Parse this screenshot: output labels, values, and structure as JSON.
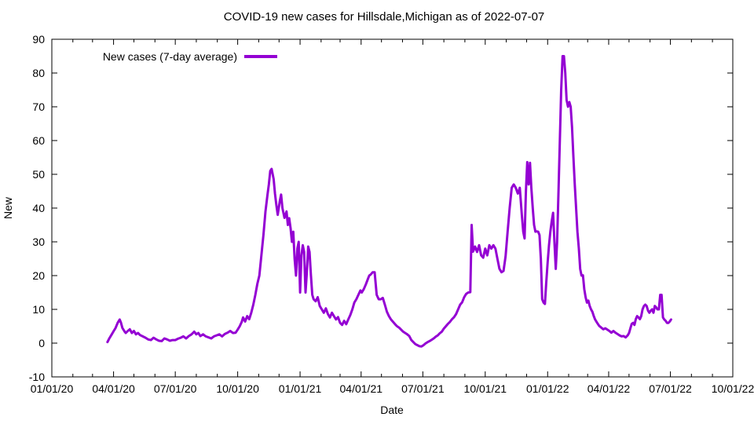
{
  "chart_data": {
    "type": "line",
    "title": "COVID-19 new cases for Hillsdale,Michigan as of 2022-07-07",
    "xlabel": "Date",
    "ylabel": "New",
    "x_unit": "days since 2020-01-01",
    "xlim": [
      0,
      1004
    ],
    "ylim": [
      -10,
      90
    ],
    "grid": false,
    "legend_position": "top-left-inside",
    "yticks": [
      -10,
      0,
      10,
      20,
      30,
      40,
      50,
      60,
      70,
      80,
      90
    ],
    "xticks": [
      {
        "day": 0,
        "label": "01/01/20"
      },
      {
        "day": 91,
        "label": "04/01/20"
      },
      {
        "day": 182,
        "label": "07/01/20"
      },
      {
        "day": 274,
        "label": "10/01/20"
      },
      {
        "day": 366,
        "label": "01/01/21"
      },
      {
        "day": 456,
        "label": "04/01/21"
      },
      {
        "day": 547,
        "label": "07/01/21"
      },
      {
        "day": 639,
        "label": "10/01/21"
      },
      {
        "day": 731,
        "label": "01/01/22"
      },
      {
        "day": 821,
        "label": "04/01/22"
      },
      {
        "day": 912,
        "label": "07/01/22"
      },
      {
        "day": 1004,
        "label": "10/01/22"
      }
    ],
    "xminor_days": [
      31,
      60,
      121,
      152,
      213,
      244,
      305,
      335,
      397,
      425,
      486,
      517,
      578,
      609,
      670,
      700,
      762,
      790,
      851,
      882,
      943,
      974
    ],
    "series": [
      {
        "name": "New cases (7-day average)",
        "color": "#9400d3",
        "points": [
          [
            82,
            0.3
          ],
          [
            85,
            1.5
          ],
          [
            88,
            2.5
          ],
          [
            91,
            3.5
          ],
          [
            94,
            4.5
          ],
          [
            97,
            6
          ],
          [
            100,
            7
          ],
          [
            102,
            6
          ],
          [
            104,
            4.5
          ],
          [
            107,
            3.5
          ],
          [
            109,
            3
          ],
          [
            112,
            3.6
          ],
          [
            115,
            4.1
          ],
          [
            118,
            3
          ],
          [
            121,
            3.6
          ],
          [
            124,
            2.6
          ],
          [
            127,
            3
          ],
          [
            130,
            2.4
          ],
          [
            134,
            2
          ],
          [
            138,
            1.6
          ],
          [
            142,
            1.1
          ],
          [
            146,
            0.9
          ],
          [
            150,
            1.6
          ],
          [
            154,
            1.1
          ],
          [
            158,
            0.7
          ],
          [
            162,
            0.6
          ],
          [
            166,
            1.4
          ],
          [
            170,
            1.1
          ],
          [
            174,
            0.7
          ],
          [
            178,
            0.9
          ],
          [
            182,
            0.9
          ],
          [
            186,
            1.3
          ],
          [
            190,
            1.6
          ],
          [
            194,
            2
          ],
          [
            198,
            1.4
          ],
          [
            202,
            2.1
          ],
          [
            206,
            2.6
          ],
          [
            210,
            3.4
          ],
          [
            213,
            2.6
          ],
          [
            216,
            3
          ],
          [
            219,
            2.1
          ],
          [
            223,
            2.6
          ],
          [
            227,
            2
          ],
          [
            231,
            1.7
          ],
          [
            235,
            1.4
          ],
          [
            239,
            2
          ],
          [
            243,
            2.3
          ],
          [
            247,
            2.6
          ],
          [
            251,
            2
          ],
          [
            255,
            2.7
          ],
          [
            259,
            3.1
          ],
          [
            263,
            3.6
          ],
          [
            267,
            3
          ],
          [
            271,
            3.1
          ],
          [
            274,
            4
          ],
          [
            277,
            5
          ],
          [
            280,
            6.3
          ],
          [
            282,
            7.6
          ],
          [
            285,
            6.4
          ],
          [
            288,
            8
          ],
          [
            291,
            7.1
          ],
          [
            294,
            9
          ],
          [
            297,
            11.4
          ],
          [
            300,
            14.3
          ],
          [
            303,
            17.6
          ],
          [
            306,
            20
          ],
          [
            309,
            26
          ],
          [
            312,
            32
          ],
          [
            315,
            39
          ],
          [
            318,
            44
          ],
          [
            320,
            47
          ],
          [
            322,
            51
          ],
          [
            324,
            51.6
          ],
          [
            327,
            48.6
          ],
          [
            329,
            44.3
          ],
          [
            331,
            41
          ],
          [
            333,
            38
          ],
          [
            336,
            42
          ],
          [
            338,
            44
          ],
          [
            340,
            40
          ],
          [
            343,
            37.1
          ],
          [
            346,
            39
          ],
          [
            348,
            35
          ],
          [
            350,
            37
          ],
          [
            352,
            34
          ],
          [
            354,
            30
          ],
          [
            356,
            33
          ],
          [
            358,
            25
          ],
          [
            360,
            20
          ],
          [
            362,
            28
          ],
          [
            364,
            30
          ],
          [
            366,
            15
          ],
          [
            368,
            26
          ],
          [
            370,
            29
          ],
          [
            372,
            27
          ],
          [
            374,
            15
          ],
          [
            376,
            21
          ],
          [
            378,
            28.6
          ],
          [
            380,
            27
          ],
          [
            382,
            20
          ],
          [
            384,
            14.3
          ],
          [
            386,
            13
          ],
          [
            389,
            12.4
          ],
          [
            392,
            13.6
          ],
          [
            395,
            11
          ],
          [
            398,
            10
          ],
          [
            401,
            9
          ],
          [
            404,
            10.3
          ],
          [
            407,
            8.6
          ],
          [
            410,
            7.6
          ],
          [
            413,
            9
          ],
          [
            416,
            8
          ],
          [
            419,
            7
          ],
          [
            422,
            7.7
          ],
          [
            425,
            6
          ],
          [
            428,
            5.4
          ],
          [
            431,
            6.6
          ],
          [
            434,
            5.6
          ],
          [
            437,
            7
          ],
          [
            440,
            8.3
          ],
          [
            443,
            10
          ],
          [
            446,
            12
          ],
          [
            449,
            13
          ],
          [
            452,
            14.3
          ],
          [
            455,
            15.6
          ],
          [
            457,
            15
          ],
          [
            460,
            16
          ],
          [
            463,
            17.4
          ],
          [
            466,
            19
          ],
          [
            468,
            20
          ],
          [
            470,
            20.3
          ],
          [
            473,
            21
          ],
          [
            476,
            21
          ],
          [
            479,
            14.3
          ],
          [
            482,
            13
          ],
          [
            485,
            13
          ],
          [
            488,
            13.4
          ],
          [
            491,
            11.4
          ],
          [
            494,
            9.3
          ],
          [
            497,
            8
          ],
          [
            500,
            7
          ],
          [
            503,
            6.3
          ],
          [
            506,
            5.6
          ],
          [
            509,
            5
          ],
          [
            512,
            4.6
          ],
          [
            515,
            4
          ],
          [
            518,
            3.4
          ],
          [
            521,
            3
          ],
          [
            524,
            2.6
          ],
          [
            527,
            2.1
          ],
          [
            530,
            0.9
          ],
          [
            533,
            0.3
          ],
          [
            536,
            -0.3
          ],
          [
            539,
            -0.6
          ],
          [
            542,
            -0.9
          ],
          [
            545,
            -1
          ],
          [
            548,
            -0.6
          ],
          [
            551,
            -0.1
          ],
          [
            554,
            0.3
          ],
          [
            557,
            0.6
          ],
          [
            560,
            1
          ],
          [
            563,
            1.4
          ],
          [
            566,
            1.9
          ],
          [
            569,
            2.3
          ],
          [
            572,
            2.9
          ],
          [
            575,
            3.4
          ],
          [
            578,
            4.3
          ],
          [
            581,
            5
          ],
          [
            584,
            5.7
          ],
          [
            587,
            6.3
          ],
          [
            590,
            7.1
          ],
          [
            593,
            7.7
          ],
          [
            596,
            8.6
          ],
          [
            599,
            10
          ],
          [
            602,
            11.4
          ],
          [
            605,
            12.1
          ],
          [
            608,
            13.6
          ],
          [
            611,
            14.6
          ],
          [
            614,
            15
          ],
          [
            617,
            15.1
          ],
          [
            619,
            35
          ],
          [
            621,
            27.1
          ],
          [
            624,
            28.6
          ],
          [
            627,
            27
          ],
          [
            630,
            29
          ],
          [
            633,
            26
          ],
          [
            636,
            25.3
          ],
          [
            639,
            28
          ],
          [
            642,
            26
          ],
          [
            645,
            29
          ],
          [
            648,
            28
          ],
          [
            651,
            29
          ],
          [
            654,
            28
          ],
          [
            657,
            25
          ],
          [
            660,
            22
          ],
          [
            663,
            21
          ],
          [
            666,
            21.4
          ],
          [
            669,
            25.7
          ],
          [
            672,
            33
          ],
          [
            675,
            40
          ],
          [
            678,
            46
          ],
          [
            681,
            47
          ],
          [
            684,
            46
          ],
          [
            687,
            44.3
          ],
          [
            690,
            46
          ],
          [
            693,
            38
          ],
          [
            695,
            33
          ],
          [
            697,
            31
          ],
          [
            699,
            45
          ],
          [
            701,
            53.6
          ],
          [
            703,
            47
          ],
          [
            705,
            53.4
          ],
          [
            707,
            46
          ],
          [
            709,
            40
          ],
          [
            711,
            35
          ],
          [
            713,
            33
          ],
          [
            715,
            33.1
          ],
          [
            717,
            33
          ],
          [
            719,
            32
          ],
          [
            721,
            25
          ],
          [
            723,
            13
          ],
          [
            725,
            12
          ],
          [
            727,
            11.6
          ],
          [
            729,
            18
          ],
          [
            731,
            24
          ],
          [
            733,
            29
          ],
          [
            735,
            33
          ],
          [
            737,
            36
          ],
          [
            739,
            38.6
          ],
          [
            741,
            30
          ],
          [
            743,
            22
          ],
          [
            745,
            30
          ],
          [
            747,
            45
          ],
          [
            749,
            60
          ],
          [
            751,
            75
          ],
          [
            753,
            85
          ],
          [
            755,
            85
          ],
          [
            757,
            80
          ],
          [
            759,
            72
          ],
          [
            761,
            70
          ],
          [
            763,
            71.4
          ],
          [
            765,
            70
          ],
          [
            767,
            64
          ],
          [
            769,
            55
          ],
          [
            771,
            47
          ],
          [
            773,
            40
          ],
          [
            775,
            33
          ],
          [
            777,
            28
          ],
          [
            779,
            22
          ],
          [
            781,
            20
          ],
          [
            783,
            20.1
          ],
          [
            785,
            16
          ],
          [
            787,
            13.6
          ],
          [
            789,
            12
          ],
          [
            791,
            12.6
          ],
          [
            793,
            11
          ],
          [
            795,
            10
          ],
          [
            797,
            9.3
          ],
          [
            799,
            8
          ],
          [
            801,
            7
          ],
          [
            804,
            6
          ],
          [
            807,
            5.1
          ],
          [
            810,
            4.6
          ],
          [
            813,
            4.1
          ],
          [
            816,
            4.4
          ],
          [
            819,
            4
          ],
          [
            822,
            3.6
          ],
          [
            825,
            3.1
          ],
          [
            828,
            3.6
          ],
          [
            831,
            3.1
          ],
          [
            834,
            2.7
          ],
          [
            837,
            2.3
          ],
          [
            840,
            2
          ],
          [
            843,
            2.1
          ],
          [
            846,
            1.7
          ],
          [
            849,
            2.3
          ],
          [
            851,
            3
          ],
          [
            853,
            4.4
          ],
          [
            855,
            5.7
          ],
          [
            857,
            6
          ],
          [
            859,
            5.4
          ],
          [
            861,
            7.1
          ],
          [
            863,
            8
          ],
          [
            865,
            7.6
          ],
          [
            867,
            7.1
          ],
          [
            869,
            8
          ],
          [
            871,
            10
          ],
          [
            873,
            11
          ],
          [
            875,
            11.4
          ],
          [
            877,
            11
          ],
          [
            879,
            9.6
          ],
          [
            881,
            9
          ],
          [
            883,
            9.6
          ],
          [
            885,
            10
          ],
          [
            887,
            9
          ],
          [
            889,
            11
          ],
          [
            891,
            10.6
          ],
          [
            893,
            10
          ],
          [
            895,
            10
          ],
          [
            897,
            14.3
          ],
          [
            899,
            14.3
          ],
          [
            901,
            7.6
          ],
          [
            903,
            7
          ],
          [
            905,
            6.6
          ],
          [
            907,
            6
          ],
          [
            909,
            6
          ],
          [
            911,
            6.4
          ],
          [
            913,
            7
          ]
        ]
      }
    ]
  }
}
